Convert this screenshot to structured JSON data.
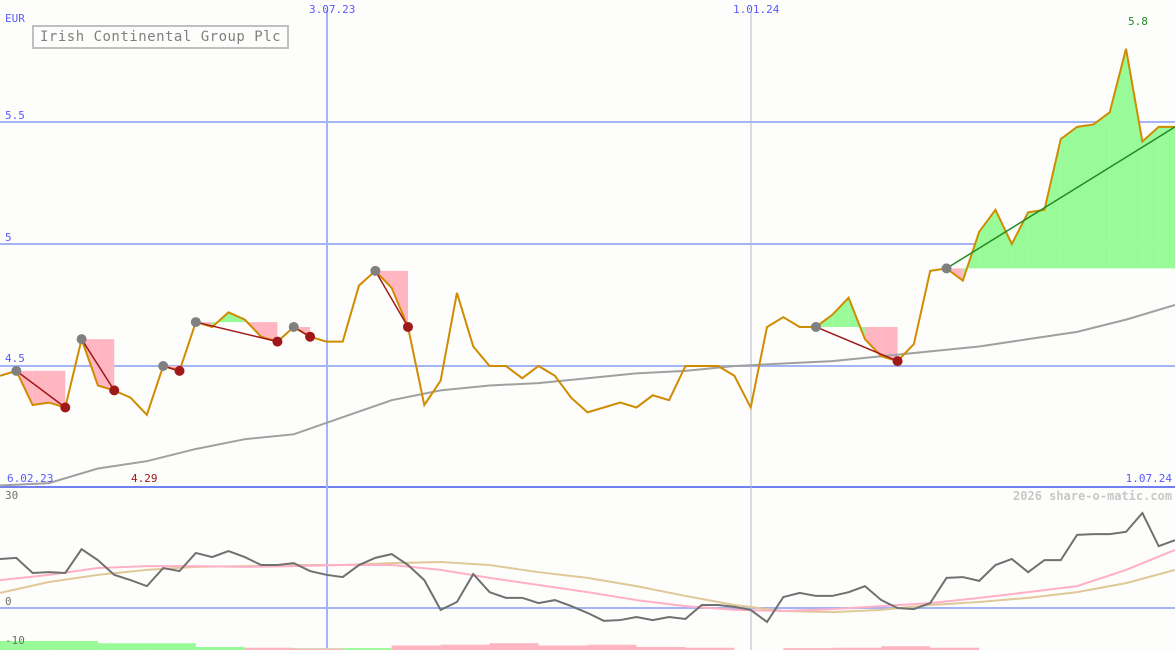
{
  "chart_data": {
    "type": "line",
    "title": "Irish Continental Group Plc",
    "currency": "EUR",
    "price_axis": {
      "ticks": [
        "4.5",
        "5",
        "5.5"
      ],
      "ylim": [
        4.0,
        6.0
      ]
    },
    "date_labels": [
      "6.02.23",
      "3.07.23",
      "1.01.24",
      "1.07.24"
    ],
    "min_label": "4.29",
    "max_label": "5.8",
    "copyright": "2026 share-o-matic.com",
    "price": [
      4.46,
      4.48,
      4.34,
      4.35,
      4.33,
      4.61,
      4.42,
      4.4,
      4.37,
      4.3,
      4.5,
      4.48,
      4.68,
      4.66,
      4.72,
      4.69,
      4.62,
      4.6,
      4.66,
      4.62,
      4.6,
      4.6,
      4.83,
      4.89,
      4.82,
      4.66,
      4.34,
      4.44,
      4.8,
      4.58,
      4.5,
      4.5,
      4.45,
      4.5,
      4.46,
      4.37,
      4.31,
      4.33,
      4.35,
      4.33,
      4.38,
      4.36,
      4.5,
      4.5,
      4.5,
      4.46,
      4.33,
      4.66,
      4.7,
      4.66,
      4.66,
      4.71,
      4.78,
      4.61,
      4.54,
      4.52,
      4.59,
      4.89,
      4.9,
      4.85,
      5.05,
      5.14,
      5.0,
      5.13,
      5.14,
      5.43,
      5.48,
      5.49,
      5.54,
      5.8,
      5.42,
      5.48,
      5.48
    ],
    "moving_average": [
      4.01,
      4.02,
      4.08,
      4.11,
      4.16,
      4.2,
      4.22,
      4.29,
      4.36,
      4.4,
      4.42,
      4.43,
      4.45,
      4.47,
      4.48,
      4.5,
      4.51,
      4.52,
      4.54,
      4.56,
      4.58,
      4.61,
      4.64,
      4.69,
      4.75
    ],
    "signals": [
      {
        "start": 1,
        "end": 4
      },
      {
        "start": 5,
        "end": 7
      },
      {
        "start": 10,
        "end": 11
      },
      {
        "start": 12,
        "end": 17
      },
      {
        "start": 18,
        "end": 19
      },
      {
        "start": 23,
        "end": 25
      },
      {
        "start": 50,
        "end": 55
      },
      {
        "start": 58,
        "end": 72,
        "open": true
      }
    ],
    "colors": {
      "price": "#d08c00",
      "ma": "#a0a0a0",
      "up": "#98fb98",
      "down": "#ffb6c1",
      "grid": "#a4b4f4",
      "axis": "#7080f0",
      "buy_marker": "#808080",
      "sell_marker": "#a01818",
      "trend": "#228b22"
    },
    "oscillator": {
      "ticks": [
        "30",
        "0",
        "-10"
      ],
      "ylim": [
        -11.5,
        31
      ],
      "main": [
        13.0,
        13.3,
        9.3,
        9.5,
        9.3,
        15.6,
        12.7,
        8.8,
        7.4,
        5.8,
        10.6,
        9.8,
        14.6,
        13.5,
        15.1,
        13.5,
        11.4,
        11.4,
        11.9,
        9.8,
        8.8,
        8.2,
        11.4,
        13.3,
        14.3,
        11.4,
        7.4,
        -0.5,
        1.6,
        9.0,
        4.2,
        2.7,
        2.7,
        1.3,
        2.1,
        0.5,
        -1.3,
        -3.4,
        -3.2,
        -2.4,
        -3.2,
        -2.4,
        -2.9,
        0.8,
        0.8,
        0.3,
        -0.5,
        -3.7,
        2.9,
        4.0,
        3.2,
        3.2,
        4.2,
        5.8,
        2.1,
        0,
        -0.3,
        1.3,
        8.0,
        8.2,
        7.2,
        11.4,
        13.0,
        9.5,
        12.7,
        12.7,
        19.4,
        19.6,
        19.6,
        20.2,
        25.2,
        16.4,
        18.0
      ],
      "signal_pink": [
        7.4,
        8.8,
        10.6,
        11.1,
        11.1,
        10.9,
        11.1,
        11.4,
        11.4,
        10.1,
        8.0,
        6.1,
        4.2,
        2.1,
        0.5,
        -0.5,
        -0.8,
        -0.3,
        0.5,
        1.3,
        2.7,
        4.2,
        5.8,
        10.1,
        15.4
      ],
      "signal_tan": [
        4.0,
        6.9,
        8.8,
        10.1,
        10.9,
        11.1,
        11.4,
        11.4,
        11.9,
        12.2,
        11.4,
        9.5,
        8.0,
        5.8,
        3.2,
        0.8,
        -0.8,
        -1.1,
        -0.5,
        0.8,
        1.6,
        2.7,
        4.2,
        6.6,
        10.1
      ],
      "histogram": [
        2.4,
        2.4,
        1.8,
        1.8,
        0.8,
        0.5,
        0.5,
        0.5,
        0.5,
        0.5,
        0.5,
        0.5,
        0,
        0,
        0,
        0,
        0,
        0,
        0,
        0,
        0,
        0,
        0,
        0
      ],
      "histogram_neg": [
        0,
        0,
        0,
        0,
        0,
        -0.6,
        -0.4,
        0,
        -1.2,
        -1.4,
        -1.8,
        -1.2,
        -1.4,
        -0.8,
        -0.6,
        0,
        -0.5,
        -0.6,
        -1.0,
        -0.6,
        0,
        0,
        0,
        0
      ],
      "colors": {
        "main": "#707070",
        "pink": "#ffb0c8",
        "tan": "#e0c898"
      }
    }
  }
}
